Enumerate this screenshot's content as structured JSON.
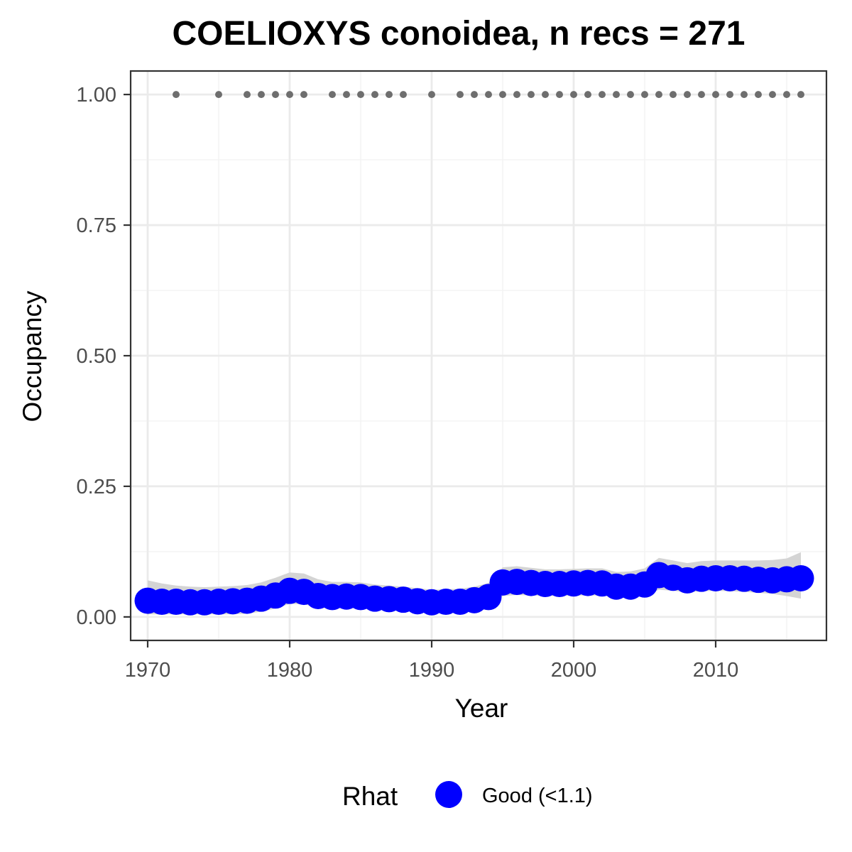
{
  "chart_data": {
    "type": "line",
    "title": "COELIOXYS conoidea, n recs = 271",
    "xlabel": "Year",
    "ylabel": "Occupancy",
    "xlim": [
      1968.8,
      2017.8
    ],
    "ylim": [
      -0.045,
      1.045
    ],
    "x_ticks": [
      1970,
      1980,
      1990,
      2000,
      2010
    ],
    "x_tick_labels": [
      "1970",
      "1980",
      "1990",
      "2000",
      "2010"
    ],
    "y_ticks": [
      0,
      0.25,
      0.5,
      0.75,
      1.0
    ],
    "y_tick_labels": [
      "0.00",
      "0.25",
      "0.50",
      "0.75",
      "1.00"
    ],
    "grid": true,
    "colors": {
      "points": "#0000ff",
      "ribbon": "#d4d4d4",
      "records": "#6e6e6e",
      "panel_border": "#333333",
      "grid": "#ebebeb"
    },
    "series": [
      {
        "name": "Good (<1.1)",
        "x": [
          1970,
          1971,
          1972,
          1973,
          1974,
          1975,
          1976,
          1977,
          1978,
          1979,
          1980,
          1981,
          1982,
          1983,
          1984,
          1985,
          1986,
          1987,
          1988,
          1989,
          1990,
          1991,
          1992,
          1993,
          1994,
          1995,
          1996,
          1997,
          1998,
          1999,
          2000,
          2001,
          2002,
          2003,
          2004,
          2005,
          2006,
          2007,
          2008,
          2009,
          2010,
          2011,
          2012,
          2013,
          2014,
          2015,
          2016
        ],
        "values": [
          0.031,
          0.029,
          0.029,
          0.028,
          0.028,
          0.029,
          0.03,
          0.031,
          0.035,
          0.041,
          0.05,
          0.048,
          0.04,
          0.038,
          0.039,
          0.038,
          0.035,
          0.034,
          0.033,
          0.03,
          0.028,
          0.029,
          0.029,
          0.032,
          0.038,
          0.066,
          0.067,
          0.065,
          0.063,
          0.063,
          0.064,
          0.065,
          0.064,
          0.058,
          0.058,
          0.062,
          0.08,
          0.075,
          0.07,
          0.073,
          0.074,
          0.074,
          0.073,
          0.071,
          0.07,
          0.072,
          0.074
        ],
        "lower": [
          0.005,
          0.005,
          0.005,
          0.005,
          0.005,
          0.005,
          0.005,
          0.006,
          0.01,
          0.016,
          0.025,
          0.024,
          0.018,
          0.016,
          0.017,
          0.016,
          0.014,
          0.013,
          0.012,
          0.01,
          0.009,
          0.009,
          0.009,
          0.011,
          0.015,
          0.04,
          0.042,
          0.041,
          0.04,
          0.04,
          0.041,
          0.041,
          0.041,
          0.037,
          0.037,
          0.04,
          0.052,
          0.05,
          0.047,
          0.049,
          0.05,
          0.049,
          0.048,
          0.046,
          0.044,
          0.04,
          0.035
        ],
        "upper": [
          0.07,
          0.064,
          0.06,
          0.058,
          0.057,
          0.058,
          0.059,
          0.061,
          0.066,
          0.075,
          0.085,
          0.083,
          0.072,
          0.067,
          0.067,
          0.066,
          0.062,
          0.06,
          0.058,
          0.055,
          0.052,
          0.053,
          0.054,
          0.058,
          0.065,
          0.095,
          0.097,
          0.094,
          0.091,
          0.091,
          0.092,
          0.093,
          0.093,
          0.086,
          0.087,
          0.093,
          0.113,
          0.108,
          0.103,
          0.107,
          0.108,
          0.108,
          0.108,
          0.108,
          0.109,
          0.112,
          0.124
        ]
      }
    ],
    "records": {
      "x": [
        1972,
        1975,
        1977,
        1978,
        1979,
        1980,
        1981,
        1983,
        1984,
        1985,
        1986,
        1987,
        1988,
        1990,
        1992,
        1993,
        1994,
        1995,
        1996,
        1997,
        1998,
        1999,
        2000,
        2001,
        2002,
        2003,
        2004,
        2005,
        2006,
        2007,
        2008,
        2009,
        2010,
        2011,
        2012,
        2013,
        2014,
        2015,
        2016
      ],
      "values": [
        1,
        1,
        1,
        1,
        1,
        1,
        1,
        1,
        1,
        1,
        1,
        1,
        1,
        1,
        1,
        1,
        1,
        1,
        1,
        1,
        1,
        1,
        1,
        1,
        1,
        1,
        1,
        1,
        1,
        1,
        1,
        1,
        1,
        1,
        1,
        1,
        1,
        1,
        1
      ]
    },
    "legend": {
      "position": "bottom",
      "title": "Rhat",
      "items": [
        {
          "label": "Good (<1.1)",
          "color": "#0000ff"
        }
      ]
    }
  }
}
